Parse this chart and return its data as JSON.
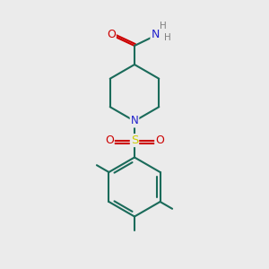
{
  "background_color": "#ebebeb",
  "bond_color": "#1a6b5a",
  "N_color": "#2020cc",
  "O_color": "#cc0000",
  "S_color": "#cccc00",
  "H_color": "#808080",
  "figsize": [
    3.0,
    3.0
  ],
  "dpi": 100,
  "lw": 1.5,
  "xlim": [
    0,
    10
  ],
  "ylim": [
    0,
    10
  ]
}
